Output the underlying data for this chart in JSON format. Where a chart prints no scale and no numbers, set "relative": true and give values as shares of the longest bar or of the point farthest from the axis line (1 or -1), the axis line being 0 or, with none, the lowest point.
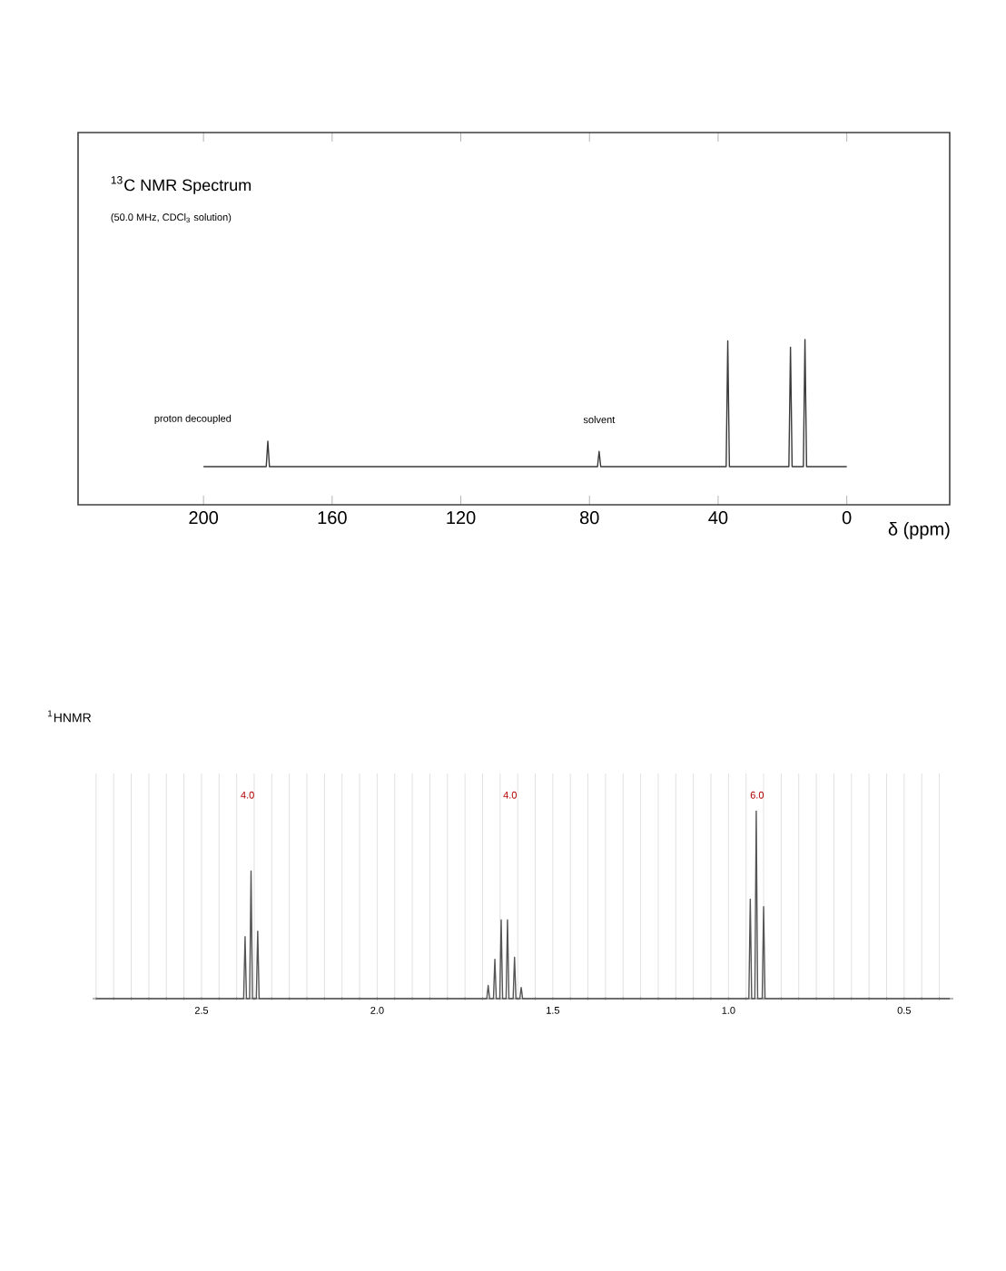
{
  "chart_data": [
    {
      "type": "line",
      "title": "$^{13}$C NMR Spectrum",
      "subtitle": "(50.0 MHz, CDCl$_{3}$ solution)",
      "xlabel": "δ (ppm)",
      "relative": true,
      "xlim": [
        239,
        -32
      ],
      "xticks": [
        200,
        160,
        120,
        80,
        40,
        0
      ],
      "series": [
        {
          "color": "#3a3a3a",
          "x": [
            200,
            180.5,
            180,
            179.5,
            77.5,
            77,
            76.5,
            37.5,
            37,
            36.5,
            18,
            17.5,
            17,
            13.5,
            13,
            12.5,
            0
          ],
          "values": [
            0,
            0,
            0.2,
            0,
            0,
            0.12,
            0,
            0,
            0.99,
            0,
            0,
            0.94,
            0,
            0,
            1,
            0,
            0
          ]
        }
      ],
      "annotations": [
        "proton decoupled",
        {
          "text": "solvent",
          "x": 77,
          "y": 0.12
        }
      ]
    },
    {
      "type": "line",
      "title": "$^{1}$HNMR",
      "relative": true,
      "grid": "x",
      "xlim": [
        2.81,
        0.36
      ],
      "xticks": [
        {
          "value": 2.8,
          "label": null
        },
        {
          "value": 2.75,
          "label": null
        },
        {
          "value": 2.7,
          "label": null
        },
        {
          "value": 2.65,
          "label": null
        },
        {
          "value": 2.6,
          "label": null
        },
        {
          "value": 2.55,
          "label": null
        },
        2.5,
        {
          "value": 2.45,
          "label": null
        },
        {
          "value": 2.4,
          "label": null
        },
        {
          "value": 2.35,
          "label": null
        },
        {
          "value": 2.3,
          "label": null
        },
        {
          "value": 2.25,
          "label": null
        },
        {
          "value": 2.2,
          "label": null
        },
        {
          "value": 2.15,
          "label": null
        },
        {
          "value": 2.1,
          "label": null
        },
        {
          "value": 2.05,
          "label": null
        },
        {
          "value": 2,
          "label": "2.0"
        },
        {
          "value": 1.95,
          "label": null
        },
        {
          "value": 1.9,
          "label": null
        },
        {
          "value": 1.85,
          "label": null
        },
        {
          "value": 1.8,
          "label": null
        },
        {
          "value": 1.75,
          "label": null
        },
        {
          "value": 1.7,
          "label": null
        },
        {
          "value": 1.65,
          "label": null
        },
        {
          "value": 1.6,
          "label": null
        },
        {
          "value": 1.55,
          "label": null
        },
        1.5,
        {
          "value": 1.45,
          "label": null
        },
        {
          "value": 1.4,
          "label": null
        },
        {
          "value": 1.35,
          "label": null
        },
        {
          "value": 1.3,
          "label": null
        },
        {
          "value": 1.25,
          "label": null
        },
        {
          "value": 1.2,
          "label": null
        },
        {
          "value": 1.15,
          "label": null
        },
        {
          "value": 1.1,
          "label": null
        },
        {
          "value": 1.05,
          "label": null
        },
        {
          "value": 1,
          "label": "1.0"
        },
        {
          "value": 0.95,
          "label": null
        },
        {
          "value": 0.9,
          "label": null
        },
        {
          "value": 0.85,
          "label": null
        },
        {
          "value": 0.8,
          "label": null
        },
        {
          "value": 0.75,
          "label": null
        },
        {
          "value": 0.7,
          "label": null
        },
        {
          "value": 0.65,
          "label": null
        },
        {
          "value": 0.6,
          "label": null
        },
        {
          "value": 0.55,
          "label": null
        },
        0.5,
        {
          "value": 0.45,
          "label": null
        },
        {
          "value": 0.4,
          "label": null
        }
      ],
      "series": [
        {
          "color": "#555555",
          "x": [
            2.8,
            2.38,
            2.376,
            2.372,
            2.363,
            2.359,
            2.355,
            2.344,
            2.34,
            2.336,
            1.688,
            1.684,
            1.68,
            1.669,
            1.665,
            1.661,
            1.651,
            1.647,
            1.643,
            1.633,
            1.629,
            1.625,
            1.613,
            1.609,
            1.605,
            1.594,
            1.59,
            1.586,
            0.942,
            0.938,
            0.934,
            0.925,
            0.921,
            0.917,
            0.904,
            0.9,
            0.896,
            0.37
          ],
          "values": [
            0,
            0,
            0.33,
            0,
            0,
            0.68,
            0,
            0,
            0.36,
            0,
            0,
            0.07,
            0,
            0,
            0.21,
            0,
            0,
            0.42,
            0,
            0,
            0.42,
            0,
            0,
            0.22,
            0,
            0,
            0.06,
            0,
            0,
            0.53,
            0,
            0,
            1,
            0,
            0,
            0.49,
            0,
            0
          ]
        }
      ],
      "annotations": [
        "4.0",
        "4.0",
        "6.0"
      ]
    }
  ]
}
